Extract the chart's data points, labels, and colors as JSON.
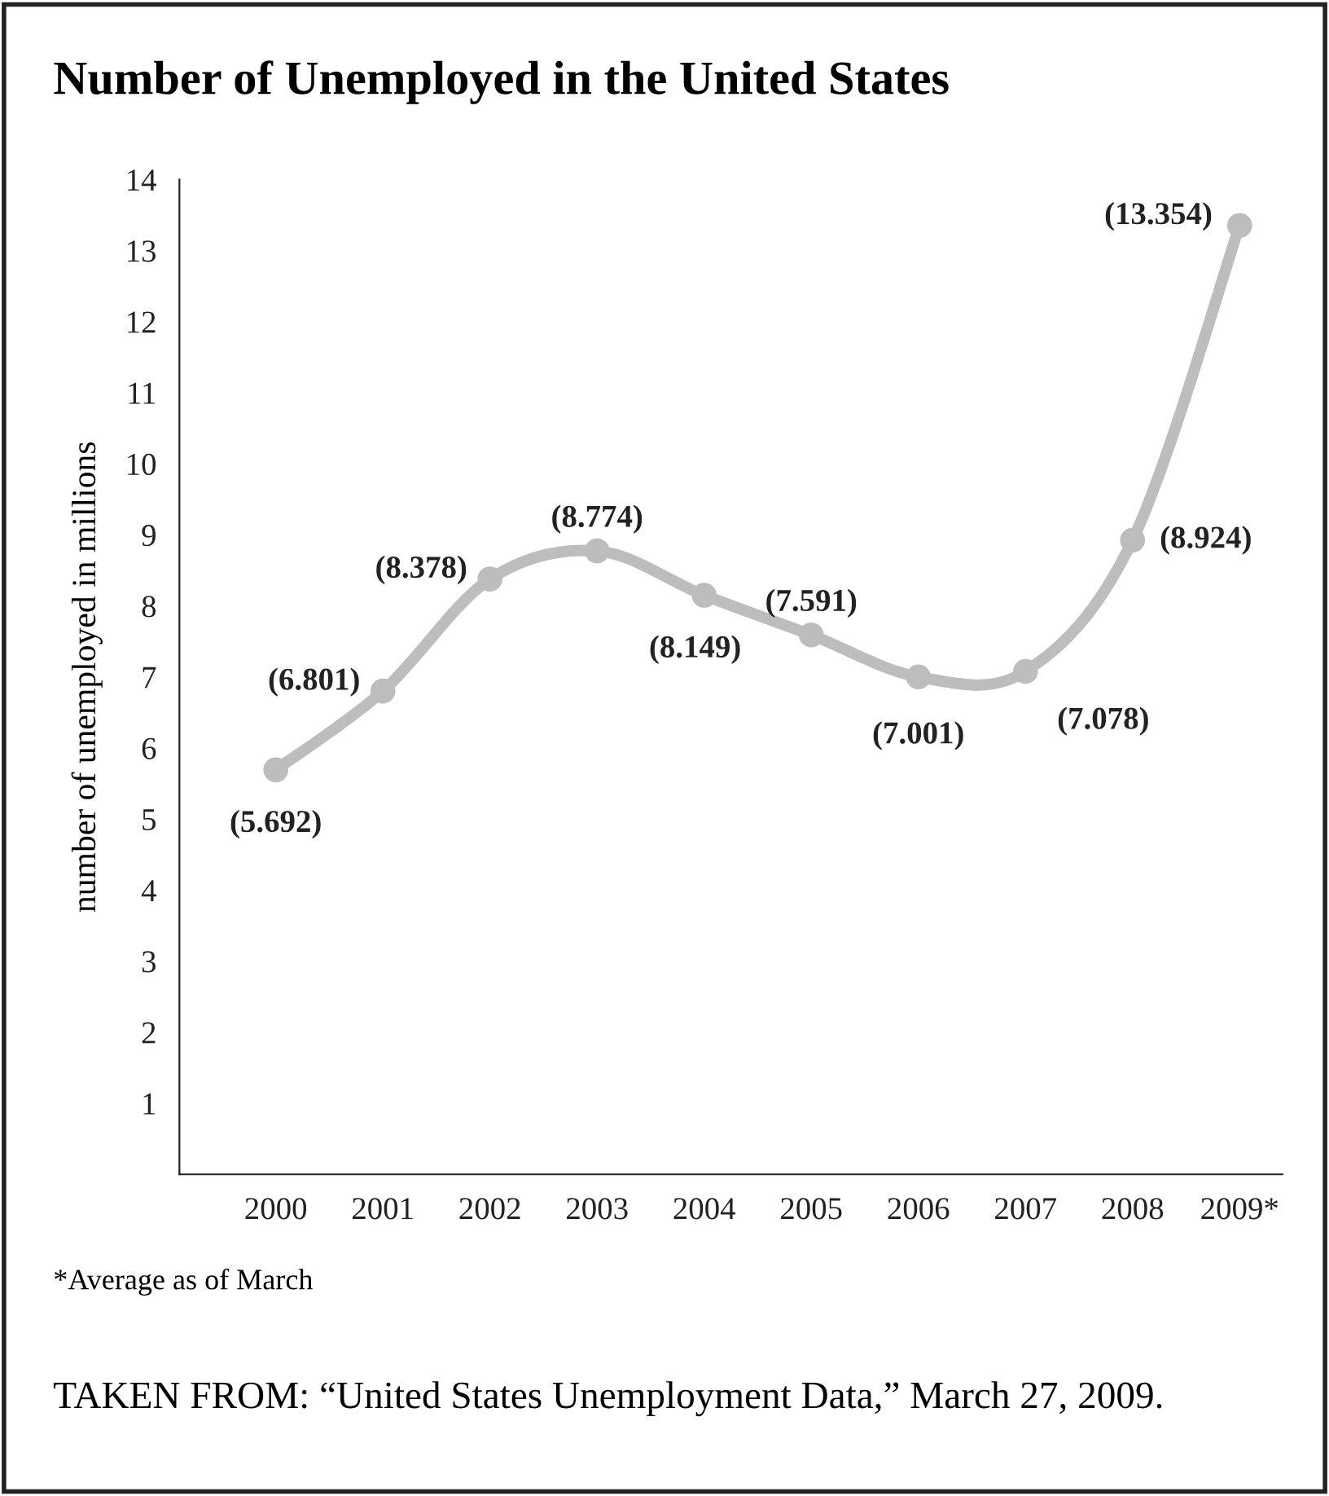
{
  "chart_data": {
    "type": "line",
    "title": "Number of Unemployed in the United States",
    "ylabel": "number of unemployed in millions",
    "categories": [
      "2000",
      "2001",
      "2002",
      "2003",
      "2004",
      "2005",
      "2006",
      "2007",
      "2008",
      "2009*"
    ],
    "series": [
      {
        "color": "#bdbdbd",
        "values": [
          5.692,
          6.801,
          8.378,
          8.774,
          8.149,
          7.591,
          7.001,
          7.078,
          8.924,
          13.354
        ],
        "value_labels": [
          "(5.692)",
          "(6.801)",
          "(8.378)",
          "(8.774)",
          "(8.149)",
          "(7.591)",
          "(7.001)",
          "(7.078)",
          "(8.924)",
          "(13.354)"
        ]
      }
    ],
    "ylim": [
      0,
      14
    ],
    "yticks": [
      1,
      2,
      3,
      4,
      5,
      6,
      7,
      8,
      9,
      10,
      11,
      12,
      13,
      14
    ],
    "grid": false,
    "marker": "circle",
    "line_style": "solid",
    "annotations": [
      "*Average as of March",
      "TAKEN FROM: “United States Unemployment Data,” March 27, 2009."
    ]
  }
}
